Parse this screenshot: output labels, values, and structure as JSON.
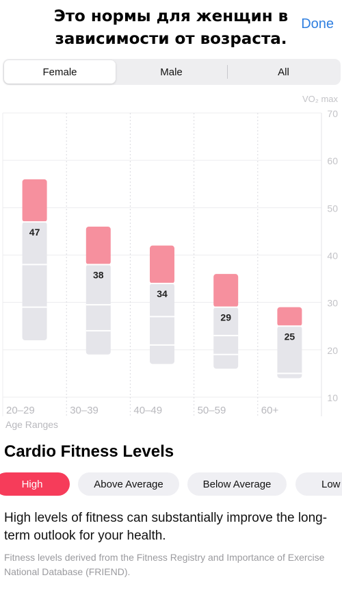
{
  "caption": {
    "line1": "Это нормы для женщин в",
    "line2": "зависимости от возраста."
  },
  "header": {
    "done_label": "Done"
  },
  "segments": [
    {
      "label": "Female",
      "active": true
    },
    {
      "label": "Male",
      "active": false
    },
    {
      "label": "All",
      "active": false
    }
  ],
  "chart_data": {
    "type": "bar",
    "title": "",
    "ylabel": "VO₂ max",
    "xlabel": "Age Ranges",
    "ylim": [
      10,
      70
    ],
    "yticks": [
      10,
      20,
      30,
      40,
      50,
      60,
      70
    ],
    "grid": true,
    "categories": [
      "20–29",
      "30–39",
      "40–49",
      "50–59",
      "60+"
    ],
    "ranges": [
      {
        "category": "20–29",
        "min": 22,
        "max": 56,
        "high_start": 47,
        "label": "47",
        "bands": [
          29,
          38
        ]
      },
      {
        "category": "30–39",
        "min": 19,
        "max": 46,
        "high_start": 38,
        "label": "38",
        "bands": [
          24,
          29.5
        ]
      },
      {
        "category": "40–49",
        "min": 17,
        "max": 42,
        "high_start": 34,
        "label": "34",
        "bands": [
          21,
          27
        ]
      },
      {
        "category": "50–59",
        "min": 16,
        "max": 36,
        "high_start": 29,
        "label": "29",
        "bands": [
          19,
          23
        ]
      },
      {
        "category": "60+",
        "min": 14,
        "max": 29,
        "high_start": 25,
        "label": "25",
        "bands": [
          15
        ]
      }
    ],
    "colors": {
      "high": "#f6909e",
      "base": "#e5e5ea"
    }
  },
  "section": {
    "title": "Cardio Fitness Levels"
  },
  "levels": [
    {
      "label": "High",
      "active": true
    },
    {
      "label": "Above Average",
      "active": false
    },
    {
      "label": "Below Average",
      "active": false
    },
    {
      "label": "Low",
      "active": false
    }
  ],
  "description": "High levels of fitness can substantially improve the long-term outlook for your health.",
  "note": "Fitness levels derived from the Fitness Registry and Importance of Exercise National Database (FRIEND)."
}
